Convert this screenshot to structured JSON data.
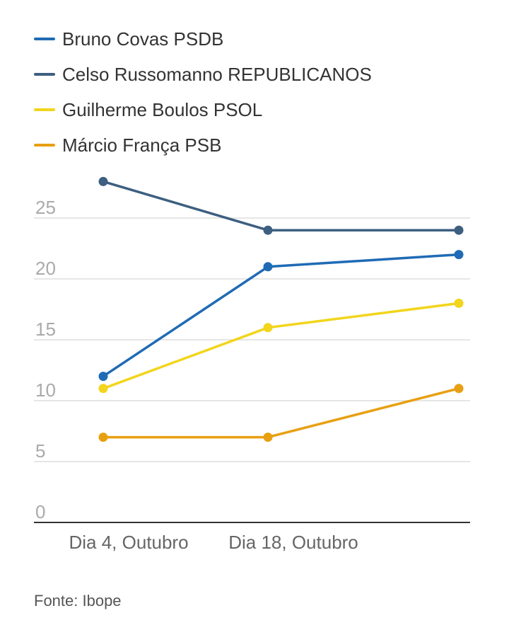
{
  "chart_data": {
    "type": "line",
    "categories": [
      "Dia 4, Outubro",
      "Dia 18, Outubro",
      ""
    ],
    "series": [
      {
        "name": "Bruno Covas PSDB",
        "color": "#1f6bb5",
        "values": [
          12,
          21,
          22
        ]
      },
      {
        "name": "Celso Russomanno REPUBLICANOS",
        "color": "#3d5f80",
        "values": [
          28,
          24,
          24
        ]
      },
      {
        "name": "Guilherme Boulos PSOL",
        "color": "#f2d51c",
        "values": [
          11,
          16,
          18
        ]
      },
      {
        "name": "Márcio França PSB",
        "color": "#e8a012",
        "values": [
          7,
          7,
          11
        ]
      }
    ],
    "y_ticks": [
      0,
      5,
      10,
      15,
      20,
      25
    ],
    "ylim": [
      0,
      25
    ],
    "grid": true,
    "legend_position": "top-left"
  },
  "source": "Fonte: Ibope"
}
